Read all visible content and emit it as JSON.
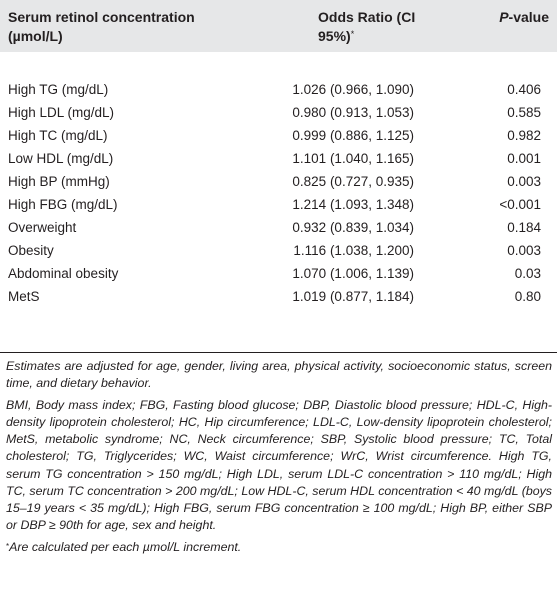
{
  "table": {
    "header": {
      "col1": "Serum retinol concentration (µmol/L)",
      "col2": "Odds Ratio (CI 95%)",
      "col2_mark": "*",
      "col3": "P",
      "col3_rest": "-value"
    },
    "rows": [
      {
        "label": "High TG (mg/dL)",
        "or": "1.026 (0.966, 1.090)",
        "p": "0.406"
      },
      {
        "label": "High LDL (mg/dL)",
        "or": "0.980 (0.913, 1.053)",
        "p": "0.585"
      },
      {
        "label": "High TC (mg/dL)",
        "or": "0.999 (0.886, 1.125)",
        "p": "0.982"
      },
      {
        "label": "Low HDL (mg/dL)",
        "or": "1.101 (1.040, 1.165)",
        "p": "0.001"
      },
      {
        "label": "High BP (mmHg)",
        "or": "0.825 (0.727, 0.935)",
        "p": "0.003"
      },
      {
        "label": "High FBG (mg/dL)",
        "or": "1.214 (1.093, 1.348)",
        "p": "<0.001"
      },
      {
        "label": "Overweight",
        "or": "0.932 (0.839, 1.034)",
        "p": "0.184"
      },
      {
        "label": "Obesity",
        "or": "1.116 (1.038, 1.200)",
        "p": "0.003"
      },
      {
        "label": "Abdominal obesity",
        "or": "1.070 (1.006, 1.139)",
        "p": "0.03"
      },
      {
        "label": "MetS",
        "or": "1.019 (0.877, 1.184)",
        "p": "0.80"
      }
    ]
  },
  "notes": {
    "adjustment": "Estimates are adjusted for age, gender, living area, physical activity, socioeconomic status, screen time, and dietary behavior.",
    "abbreviations": "BMI, Body mass index; FBG, Fasting blood glucose; DBP, Diastolic blood pressure; HDL-C, High-density lipoprotein cholesterol; HC, Hip circumference; LDL-C, Low-density lipoprotein cholesterol; MetS, metabolic syndrome; NC, Neck circumference; SBP, Systolic blood pressure; TC, Total cholesterol; TG, Triglycerides; WC, Waist circumference; WrC, Wrist circumference. High TG, serum TG concentration > 150 mg/dL; High LDL, serum LDL-C concentration > 110 mg/dL; High TC, serum TC concentration > 200 mg/dL; Low HDL-C, serum HDL concentration < 40 mg/dL (boys 15–19 years < 35 mg/dL); High FBG, serum FBG concentration ≥ 100 mg/dL; High BP, either SBP or DBP ≥ 90th for age, sex and height.",
    "footnote_mark": "*",
    "footnote": "Are calculated per each µmol/L increment."
  }
}
